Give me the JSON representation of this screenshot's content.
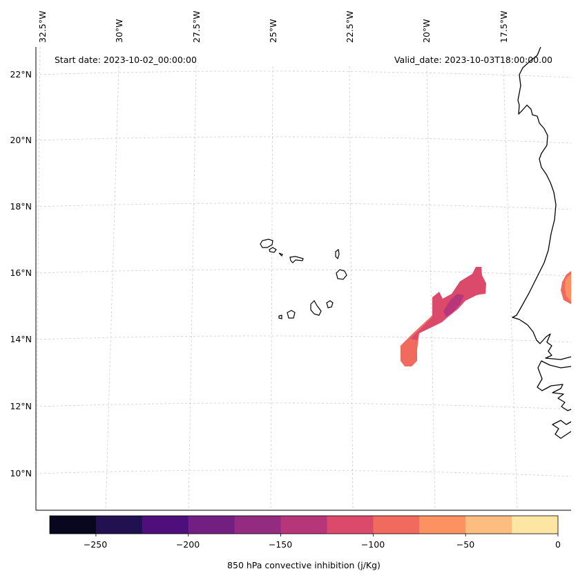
{
  "map": {
    "start_label": "Start date: 2023-10-02_00:00:00",
    "valid_label": "Valid_date: 2023-10-03T18:00:00.00",
    "lon_ticks": [
      "32.5°W",
      "30°W",
      "27.5°W",
      "25°W",
      "22.5°W",
      "20°W",
      "17.5°W"
    ],
    "lat_ticks": [
      "22°N",
      "20°N",
      "18°N",
      "16°N",
      "14°N",
      "12°N",
      "10°N"
    ],
    "field": "850 hPa convective inhibition",
    "features": [
      "Cabo Verde islands",
      "West African coastline",
      "CIN band west of Senegal",
      "CIN patch on coast"
    ]
  },
  "colorbar": {
    "label": "850 hPa convective inhibition (j/Kg)",
    "ticks": [
      "−250",
      "−200",
      "−150",
      "−100",
      "−50",
      "0"
    ],
    "levels": [
      -275,
      -250,
      -225,
      -200,
      -175,
      -150,
      -125,
      -100,
      -75,
      -50,
      -25,
      0
    ],
    "colors": [
      "#08071f",
      "#221150",
      "#4e0f7c",
      "#721f81",
      "#932b80",
      "#b7367a",
      "#db4a6b",
      "#f06b5d",
      "#fc9162",
      "#fdbc80",
      "#fde5a3"
    ]
  }
}
